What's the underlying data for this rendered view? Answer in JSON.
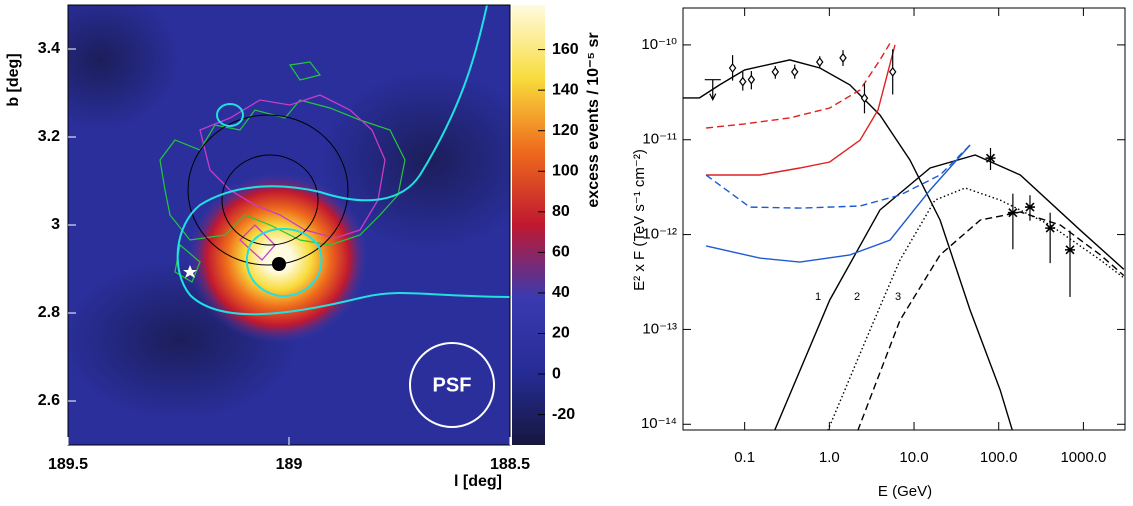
{
  "chart_data": [
    {
      "type": "heatmap",
      "xlabel": "l [deg]",
      "ylabel": "b [deg]",
      "xlim": [
        189.5,
        188.5
      ],
      "xticks": [
        189.5,
        189,
        188.5
      ],
      "ylim": [
        2.5,
        3.5
      ],
      "yticks": [
        2.6,
        2.8,
        3,
        3.2,
        3.4
      ],
      "colorbar": {
        "label": "excess events / 10⁻⁵ sr",
        "lim": [
          -35,
          182
        ],
        "ticks": [
          -20,
          0,
          20,
          40,
          60,
          80,
          100,
          120,
          140,
          160
        ],
        "colormap": [
          "#16163e",
          "#262c96",
          "#3a3ab0",
          "#c01830",
          "#ee6a1c",
          "#f8dc3c",
          "#fffbe0"
        ]
      },
      "annotations": [
        "PSF"
      ]
    },
    {
      "type": "line",
      "xscale": "log",
      "yscale": "log",
      "xlabel": "E (GeV)",
      "ylabel": "E² x F (TeV s⁻¹ cm⁻²)",
      "xlim": [
        0.0187,
        3100
      ],
      "xticks": [
        0.1,
        {
          "value": 1,
          "label": "1.0"
        },
        {
          "value": 10,
          "label": "10.0"
        },
        {
          "value": 100,
          "label": "100.0"
        },
        {
          "value": 1000,
          "label": "1000.0"
        }
      ],
      "ylim": [
        8.7e-15,
        2.45e-10
      ],
      "yticks": [
        {
          "value": 1e-14,
          "label": "10⁻¹⁴"
        },
        {
          "value": 1e-13,
          "label": "10⁻¹³"
        },
        {
          "value": 1e-12,
          "label": "10⁻¹²"
        },
        {
          "value": 1e-11,
          "label": "10⁻¹¹"
        },
        {
          "value": 1e-10,
          "label": "10⁻¹⁰"
        }
      ],
      "annotations": [
        "1",
        "2",
        "3"
      ],
      "series": [
        {
          "color": "#000000",
          "dash": "solid",
          "x": [
            0.0185,
            0.0293,
            0.0506,
            0.1,
            0.341,
            0.773,
            1.75,
            3.96,
            8.97,
            20.3,
            46.0,
            104,
            145
          ],
          "values": [
            2.76e-11,
            2.76e-11,
            3.79e-11,
            5.45e-11,
            6.95e-11,
            5.71e-11,
            3.79e-11,
            1.82e-11,
            6.1e-12,
            1.42e-12,
            1.6e-13,
            2.29e-14,
            8.6e-15
          ]
        },
        {
          "color": "#000000",
          "dash": "solid",
          "x": [
            0.226,
            1.01,
            3.96,
            15.5,
            52.7,
            180,
            921,
            3000
          ],
          "values": [
            8.6e-15,
            2.04e-13,
            1.82e-12,
            5.04e-12,
            6.9e-12,
            4.25e-12,
            1.11e-12,
            4.3e-13
          ]
        },
        {
          "color": "#000000",
          "dash": "dotted",
          "x": [
            0.96,
            3.01,
            6.82,
            17.7,
            40.2,
            104,
            406,
            1590,
            3000
          ],
          "values": [
            8.6e-15,
            9.8e-14,
            5.4e-13,
            2.31e-12,
            3.1e-12,
            2.31e-12,
            1.26e-12,
            5.4e-13,
            3.5e-13
          ]
        },
        {
          "color": "#000000",
          "dash": "dashed",
          "x": [
            2.17,
            6.82,
            20.3,
            60.4,
            180,
            535,
            1590,
            3000
          ],
          "values": [
            8.6e-15,
            1.25e-13,
            6.1e-13,
            1.42e-12,
            1.73e-12,
            1.26e-12,
            6.1e-13,
            3.7e-13
          ]
        },
        {
          "color": "#e02020",
          "dash": "dashed",
          "x": [
            0.035,
            0.1,
            0.341,
            1.01,
            2.3,
            3.96,
            5.5
          ],
          "values": [
            1.33e-11,
            1.47e-11,
            1.7e-11,
            2.16e-11,
            3.35e-11,
            6.95e-11,
            1.13e-10
          ]
        },
        {
          "color": "#e02020",
          "dash": "solid",
          "x": [
            0.035,
            0.151,
            0.448,
            1.01,
            2.3,
            3.75,
            5.96
          ],
          "values": [
            4.25e-12,
            4.25e-12,
            5.04e-12,
            5.82e-12,
            9.9e-12,
            2.06e-11,
            1e-10
          ]
        },
        {
          "color": "#1e5ad2",
          "dash": "dashed",
          "x": [
            0.035,
            0.115,
            0.448,
            2.3,
            6.82,
            20.3,
            46.0
          ],
          "values": [
            4.25e-12,
            1.95e-12,
            1.9e-12,
            2e-12,
            2.61e-12,
            4.25e-12,
            8.8e-12
          ]
        },
        {
          "color": "#1e5ad2",
          "dash": "solid",
          "x": [
            0.035,
            0.151,
            0.448,
            1.75,
            5.2,
            15.5,
            46.0
          ],
          "values": [
            7.6e-13,
            5.65e-13,
            5.13e-13,
            6.1e-13,
            8.75e-13,
            2.95e-12,
            8.8e-12
          ]
        },
        {
          "color": "#000000",
          "marker": "diamond",
          "x": [
            0.042,
            0.072,
            0.095,
            0.12,
            0.23,
            0.39,
            0.77,
            1.45,
            2.6,
            5.6
          ],
          "values": [
            4.3e-11,
            5.7e-11,
            4.1e-11,
            4.3e-11,
            5.2e-11,
            5.2e-11,
            6.6e-11,
            7.3e-11,
            2.75e-11,
            5.2e-11
          ],
          "low": [
            null,
            4.2e-11,
            3.3e-11,
            3.4e-11,
            4.4e-11,
            4.4e-11,
            5.7e-11,
            6e-11,
            1.9e-11,
            3e-11
          ],
          "high": [
            null,
            7.8e-11,
            5.2e-11,
            5.3e-11,
            6e-11,
            6.2e-11,
            7.6e-11,
            8.8e-11,
            3.9e-11,
            9e-11
          ],
          "upper_limit": [
            true,
            false,
            false,
            false,
            false,
            false,
            false,
            false,
            false,
            false
          ]
        },
        {
          "color": "#000000",
          "marker": "star",
          "x": [
            80,
            147,
            234,
            405,
            695
          ],
          "values": [
            6.4e-12,
            1.7e-12,
            1.95e-12,
            1.17e-12,
            6.9e-13
          ],
          "low": [
            4.8e-12,
            7e-13,
            1.4e-12,
            5e-13,
            2.2e-13
          ],
          "high": [
            8.2e-12,
            2.7e-12,
            2.6e-12,
            1.7e-12,
            1.1e-12
          ],
          "upper_limit": [
            false,
            false,
            false,
            false,
            false
          ]
        }
      ]
    }
  ]
}
